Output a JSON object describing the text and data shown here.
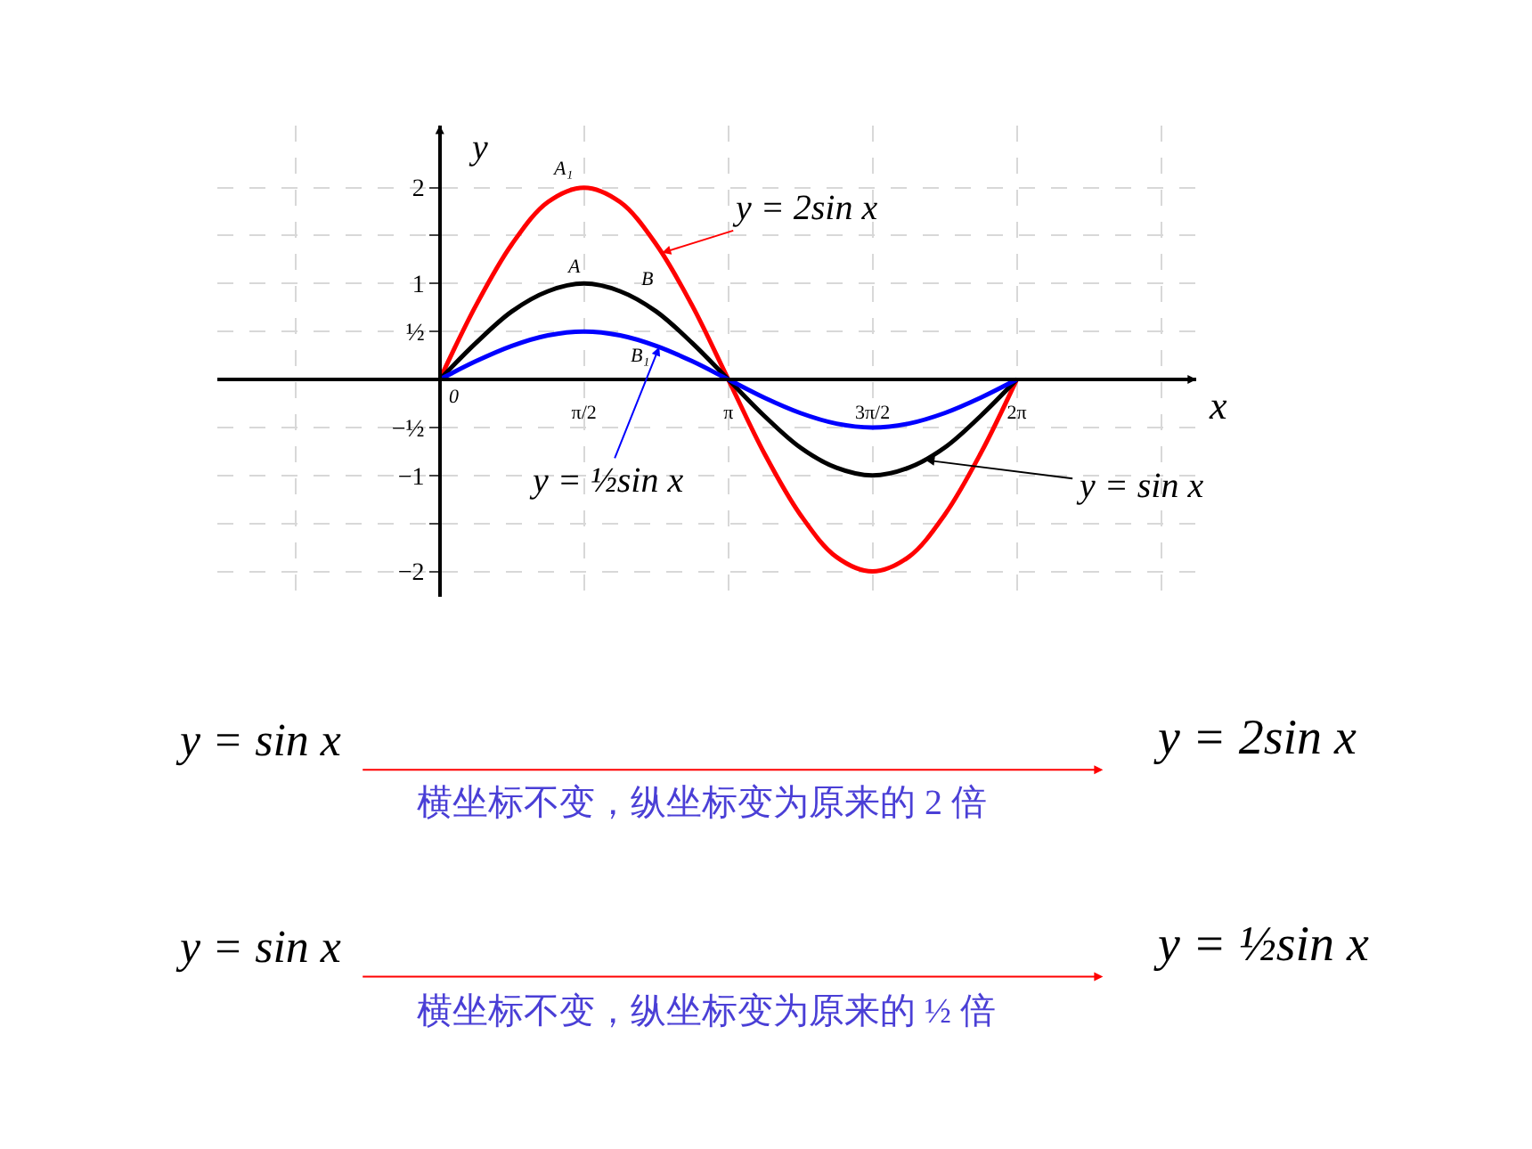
{
  "chart_data": {
    "type": "line",
    "xlabel": "x",
    "ylabel": "y",
    "x": [
      0,
      0.393,
      0.785,
      1.178,
      1.571,
      1.963,
      2.356,
      2.749,
      3.142,
      3.534,
      3.927,
      4.32,
      4.712,
      5.105,
      5.498,
      5.89,
      6.283
    ],
    "series": [
      {
        "color": "#ff0000",
        "values": [
          0,
          0.77,
          1.41,
          1.85,
          2,
          1.85,
          1.41,
          0.77,
          0,
          -0.77,
          -1.41,
          -1.85,
          -2,
          -1.85,
          -1.41,
          -0.77,
          0
        ]
      },
      {
        "color": "#000000",
        "values": [
          0,
          0.38,
          0.71,
          0.92,
          1,
          0.92,
          0.71,
          0.38,
          0,
          -0.38,
          -0.71,
          -0.92,
          -1,
          -0.92,
          -0.71,
          -0.38,
          0
        ]
      },
      {
        "color": "#0000ff",
        "values": [
          0,
          0.19,
          0.35,
          0.46,
          0.5,
          0.46,
          0.35,
          0.19,
          0,
          -0.19,
          -0.35,
          -0.46,
          -0.5,
          -0.46,
          -0.35,
          -0.19,
          0
        ]
      }
    ],
    "xlim": [
      -2.42,
      8.24
    ],
    "ylim": [
      -2.26,
      2.65
    ],
    "xticks": [
      {
        "value": -1.571,
        "label": null
      },
      {
        "value": 0,
        "label": null
      },
      {
        "value": 1.571,
        "label": "π/2"
      },
      {
        "value": 3.142,
        "label": "π"
      },
      {
        "value": 4.712,
        "label": "3π/2"
      },
      {
        "value": 6.283,
        "label": "2π"
      },
      {
        "value": 7.854,
        "label": null
      }
    ],
    "yticks": [
      {
        "value": -2,
        "label": "−2"
      },
      {
        "value": -1.5,
        "label": null
      },
      {
        "value": -1,
        "label": "−1"
      },
      {
        "value": -0.5,
        "label": "−½"
      },
      {
        "value": 0.5,
        "label": "½"
      },
      {
        "value": 1,
        "label": "1"
      },
      {
        "value": 1.5,
        "label": null
      },
      {
        "value": 2,
        "label": "2"
      }
    ],
    "grid": true,
    "marker": "none",
    "line_style": "solid",
    "annotations": [
      {
        "text": "A₁",
        "x": 1.571,
        "y": 2
      },
      {
        "text": "A",
        "x": 1.571,
        "y": 1
      },
      {
        "text": "B",
        "x": 1.96,
        "y": 0.92
      },
      {
        "text": "B₁",
        "x": 1.96,
        "y": 0.46
      },
      {
        "text": "0",
        "x": 0,
        "y": 0
      },
      {
        "text": "y = 2sin x",
        "x": 2.42,
        "y": 1.32
      },
      {
        "text": "y = sin x",
        "x": 5.29,
        "y": -0.84
      },
      {
        "text": "y = ½sin x",
        "x": 2.39,
        "y": 0.34
      },
      "y = sin x",
      "横坐标不变，纵坐标变为原来的 2 倍",
      "y = 2sin x",
      "y = sin x",
      "横坐标不变，纵坐标变为原来的 ½ 倍",
      "y = ½sin x"
    ]
  }
}
